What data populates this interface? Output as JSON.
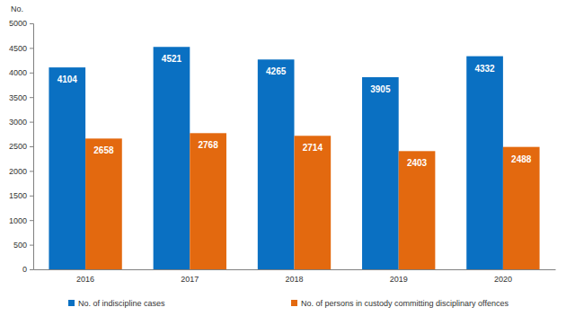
{
  "chart_data": {
    "type": "bar",
    "y_label": "No.",
    "categories": [
      "2016",
      "2017",
      "2018",
      "2019",
      "2020"
    ],
    "series": [
      {
        "name": "No. of indiscipline cases",
        "color": "#0a70c2",
        "values": [
          4104,
          4521,
          4265,
          3905,
          4332
        ]
      },
      {
        "name": "No. of persons in custody committing disciplinary offences",
        "color": "#e3690f",
        "values": [
          2658,
          2768,
          2714,
          2403,
          2488
        ]
      }
    ],
    "ylim": [
      0,
      5000
    ],
    "yticks": [
      0,
      500,
      1000,
      1500,
      2000,
      2500,
      3000,
      3500,
      4000,
      4500,
      5000
    ],
    "grid": false,
    "legend": "bottom",
    "data_labels": true
  }
}
